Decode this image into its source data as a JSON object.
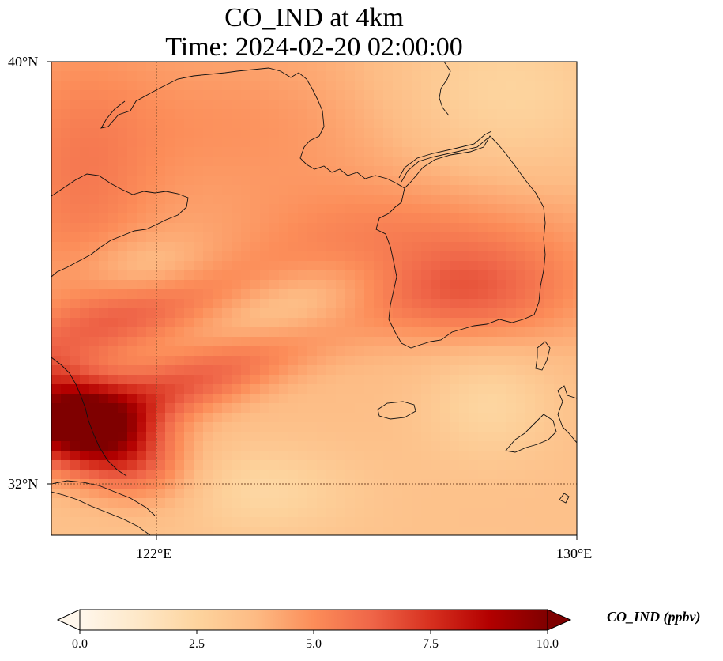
{
  "title": {
    "line1": "CO_IND at 4km",
    "line2": "Time: 2024-02-20 02:00:00"
  },
  "map": {
    "variable": "CO_IND",
    "lon_range": [
      120.4,
      130.0
    ],
    "lat_range": [
      31.0,
      40.0
    ],
    "lat_ticks": [
      {
        "value": 40,
        "label": "40°N"
      },
      {
        "value": 32,
        "label": "32°N"
      }
    ],
    "lon_ticks": [
      {
        "value": 122,
        "label": "122°E"
      },
      {
        "value": 130,
        "label": "130°E"
      }
    ],
    "gridlines": {
      "lon": 122,
      "lat": 32,
      "style": "dotted"
    },
    "colormap": "OrRd",
    "colors": [
      "#fff7ec",
      "#fee8c8",
      "#fdd49e",
      "#fdbb84",
      "#fc8d59",
      "#ef6548",
      "#d7301f",
      "#b30000",
      "#7f0000"
    ]
  },
  "colorbar": {
    "label": "CO_IND (ppbv)",
    "range": [
      0.0,
      10.0
    ],
    "extend": "both",
    "ticks": [
      {
        "value": 0.0,
        "label": "0.0"
      },
      {
        "value": 2.5,
        "label": "2.5"
      },
      {
        "value": 5.0,
        "label": "5.0"
      },
      {
        "value": 7.5,
        "label": "7.5"
      },
      {
        "value": 10.0,
        "label": "10.0"
      }
    ]
  }
}
